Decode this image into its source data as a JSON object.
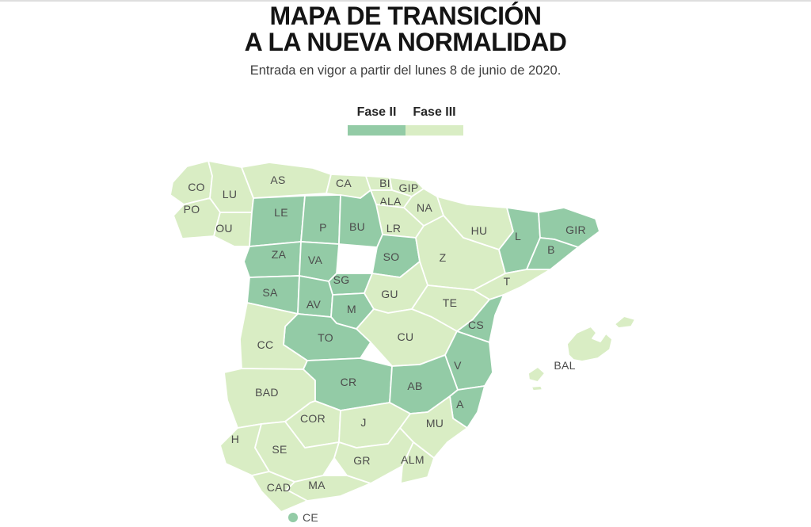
{
  "header": {
    "title_line1": "MAPA DE TRANSICIÓN",
    "title_line2": "A LA NUEVA NORMALIDAD",
    "subtitle": "Entrada en vigor a partir del lunes 8 de junio de 2020."
  },
  "legend": {
    "items": [
      {
        "label": "Fase II",
        "phase": "fase2"
      },
      {
        "label": "Fase III",
        "phase": "fase3"
      }
    ]
  },
  "colors": {
    "fase2": "#93cba6",
    "fase3": "#d9edc4",
    "border": "#ffffff",
    "label": "#4c4c4c",
    "top_rule": "#dedede"
  },
  "chart_data": {
    "type": "map",
    "title": "MAPA DE TRANSICIÓN A LA NUEVA NORMALIDAD",
    "subtitle": "Entrada en vigor a partir del lunes 8 de junio de 2020.",
    "legend": [
      "Fase II",
      "Fase III"
    ],
    "fase2_provinces": [
      "LE",
      "P",
      "BU",
      "SO",
      "ZA",
      "VA",
      "SG",
      "SA",
      "AV",
      "M",
      "TO",
      "CR",
      "AB",
      "CS",
      "V",
      "A",
      "L",
      "GIR",
      "B",
      "CE"
    ],
    "fase3_provinces": [
      "CO",
      "LU",
      "PO",
      "OU",
      "AS",
      "CA",
      "BI",
      "GIP",
      "ALA",
      "NA",
      "LR",
      "HU",
      "Z",
      "T",
      "TE",
      "GU",
      "CU",
      "CC",
      "BAD",
      "COR",
      "J",
      "H",
      "SE",
      "GR",
      "ALM",
      "MA",
      "CAD",
      "MU",
      "BAL"
    ]
  },
  "map": {
    "provinces": [
      {
        "code": "CO",
        "phase": "fase3",
        "label": [
          248,
          236
        ],
        "polys": [
          "215,246 218,230 236,210 263,203 268,222 265,250 232,258"
        ]
      },
      {
        "code": "LU",
        "phase": "fase3",
        "label": [
          290,
          245
        ],
        "polys": [
          "263,203 305,211 320,250 318,268 278,268 265,250 268,222"
        ]
      },
      {
        "code": "PO",
        "phase": "fase3",
        "label": [
          242,
          264
        ],
        "polys": [
          "232,258 265,250 278,268 270,298 230,301 219,272"
        ]
      },
      {
        "code": "OU",
        "phase": "fase3",
        "label": [
          283,
          288
        ],
        "polys": [
          "278,268 318,268 315,311 296,311 270,298"
        ]
      },
      {
        "code": "AS",
        "phase": "fase3",
        "label": [
          351,
          227
        ],
        "polys": [
          "305,211 340,205 395,212 418,220 412,244 320,250"
        ]
      },
      {
        "code": "CA",
        "phase": "fase3",
        "label": [
          434,
          231
        ],
        "polys": [
          "418,220 462,222 468,240 455,250 412,244"
        ]
      },
      {
        "code": "BI",
        "phase": "fase3",
        "label": [
          486,
          231
        ],
        "polys": [
          "462,222 492,224 495,240 468,240"
        ]
      },
      {
        "code": "GIP",
        "phase": "fase3",
        "label": [
          516,
          237
        ],
        "polys": [
          "492,224 525,228 535,238 520,248 495,240"
        ]
      },
      {
        "code": "ALA",
        "phase": "fase3",
        "label": [
          493,
          254
        ],
        "polys": [
          "468,240 495,240 520,248 510,262 475,258"
        ]
      },
      {
        "code": "NA",
        "phase": "fase3",
        "label": [
          536,
          262
        ],
        "polys": [
          "520,248 535,238 552,248 560,272 535,285 510,262"
        ]
      },
      {
        "code": "LR",
        "phase": "fase3",
        "label": [
          497,
          288
        ],
        "polys": [
          "475,258 510,262 535,285 525,300 483,296"
        ]
      },
      {
        "code": "LE",
        "phase": "fase2",
        "label": [
          355,
          268
        ],
        "polys": [
          "320,250 385,247 380,305 315,311 318,268"
        ]
      },
      {
        "code": "P",
        "phase": "fase2",
        "label": [
          408,
          287
        ],
        "polys": [
          "385,247 430,246 428,308 380,305"
        ]
      },
      {
        "code": "BU",
        "phase": "fase2",
        "label": [
          451,
          286
        ],
        "polys": [
          "430,246 455,250 468,240 475,258 483,296 476,312 428,308"
        ]
      },
      {
        "code": "SO",
        "phase": "fase2",
        "label": [
          494,
          324
        ],
        "polys": [
          "483,296 525,300 530,330 505,350 470,345 476,312"
        ]
      },
      {
        "code": "HU",
        "phase": "fase3",
        "label": [
          605,
          291
        ],
        "polys": [
          "552,248 590,258 640,262 648,292 630,315 585,300 560,272"
        ]
      },
      {
        "code": "Z",
        "phase": "fase3",
        "label": [
          559,
          325
        ],
        "polys": [
          "525,300 535,285 560,272 585,300 630,315 638,345 598,366 540,360 530,330"
        ]
      },
      {
        "code": "L",
        "phase": "fase2",
        "label": [
          654,
          298
        ],
        "polys": [
          "640,262 680,268 682,300 665,340 638,345 630,315 648,292"
        ]
      },
      {
        "code": "GIR",
        "phase": "fase2",
        "label": [
          727,
          290
        ],
        "polys": [
          "680,268 712,262 752,276 757,292 730,312 700,302 682,300"
        ]
      },
      {
        "code": "B",
        "phase": "fase2",
        "label": [
          696,
          315
        ],
        "polys": [
          "682,300 700,302 730,312 695,340 665,340"
        ]
      },
      {
        "code": "T",
        "phase": "fase3",
        "label": [
          640,
          355
        ],
        "polys": [
          "638,345 665,340 695,340 658,362 636,372 618,378 598,366"
        ]
      },
      {
        "code": "ZA",
        "phase": "fase2",
        "label": [
          352,
          321
        ],
        "polys": [
          "315,311 380,305 378,348 315,350 308,330"
        ]
      },
      {
        "code": "VA",
        "phase": "fase2",
        "label": [
          398,
          328
        ],
        "polys": [
          "380,305 428,308 425,345 415,355 378,348"
        ]
      },
      {
        "code": "SG",
        "phase": "fase2",
        "label": [
          431,
          353
        ],
        "polys": [
          "425,345 470,345 460,370 420,372 415,355"
        ]
      },
      {
        "code": "SA",
        "phase": "fase2",
        "label": [
          341,
          369
        ],
        "polys": [
          "315,350 378,348 376,396 312,382"
        ]
      },
      {
        "code": "AV",
        "phase": "fase2",
        "label": [
          396,
          384
        ],
        "polys": [
          "378,348 415,355 420,372 418,400 376,396"
        ]
      },
      {
        "code": "M",
        "phase": "fase2",
        "label": [
          444,
          390
        ],
        "polys": [
          "420,372 460,370 472,390 450,415 425,408 418,400"
        ]
      },
      {
        "code": "GU",
        "phase": "fase3",
        "label": [
          492,
          371
        ],
        "polys": [
          "460,370 470,345 505,350 530,330 540,360 520,390 490,395 472,390"
        ]
      },
      {
        "code": "TE",
        "phase": "fase3",
        "label": [
          568,
          382
        ],
        "polys": [
          "540,360 598,366 618,378 597,403 577,418 545,400 520,390"
        ]
      },
      {
        "code": "CS",
        "phase": "fase2",
        "label": [
          601,
          410
        ],
        "polys": [
          "597,403 618,378 636,372 625,398 618,432 577,418"
        ]
      },
      {
        "code": "CU",
        "phase": "fase3",
        "label": [
          512,
          425
        ],
        "polys": [
          "472,390 490,395 520,390 545,400 577,418 562,448 530,460 495,462 468,432 450,415"
        ]
      },
      {
        "code": "TO",
        "phase": "fase2",
        "label": [
          411,
          426
        ],
        "polys": [
          "376,396 418,400 425,408 450,415 468,432 455,452 388,455 358,435 360,412"
        ]
      },
      {
        "code": "CC",
        "phase": "fase3",
        "label": [
          335,
          435
        ],
        "polys": [
          "312,382 376,396 360,412 358,435 388,455 383,466 305,465 303,428"
        ]
      },
      {
        "code": "V",
        "phase": "fase2",
        "label": [
          578,
          461
        ],
        "polys": [
          "577,418 618,432 622,470 612,487 578,492 562,448"
        ]
      },
      {
        "code": "BAD",
        "phase": "fase3",
        "label": [
          337,
          495
        ],
        "polys": [
          "283,470 305,465 383,466 398,480 398,506 392,508 360,532 330,535 300,540 287,505"
        ]
      },
      {
        "code": "CR",
        "phase": "fase2",
        "label": [
          440,
          482
        ],
        "polys": [
          "388,455 455,452 495,462 492,508 430,518 398,506 398,480 383,466"
        ]
      },
      {
        "code": "AB",
        "phase": "fase2",
        "label": [
          524,
          487
        ],
        "polys": [
          "495,462 530,460 562,448 578,492 568,500 540,520 518,522 492,508"
        ]
      },
      {
        "code": "A",
        "phase": "fase2",
        "label": [
          581,
          510
        ],
        "polys": [
          "578,492 612,487 603,520 590,540 572,528 568,500"
        ]
      },
      {
        "code": "MU",
        "phase": "fase3",
        "label": [
          549,
          534
        ],
        "polys": [
          "518,522 540,520 568,500 572,528 590,540 565,558 548,578 522,558 505,540"
        ]
      },
      {
        "code": "COR",
        "phase": "fase3",
        "label": [
          395,
          528
        ],
        "polys": [
          "392,508 398,506 430,518 428,558 385,565 360,532"
        ]
      },
      {
        "code": "J",
        "phase": "fase3",
        "label": [
          459,
          533
        ],
        "polys": [
          "430,518 492,508 518,522 505,540 490,560 450,565 428,558"
        ]
      },
      {
        "code": "H",
        "phase": "fase3",
        "label": [
          297,
          554
        ],
        "polys": [
          "300,540 330,535 322,565 340,595 318,600 285,585 278,562"
        ]
      },
      {
        "code": "SE",
        "phase": "fase3",
        "label": [
          353,
          567
        ],
        "polys": [
          "330,535 360,532 385,565 428,558 422,578 408,600 372,608 340,595 322,565"
        ]
      },
      {
        "code": "GR",
        "phase": "fase3",
        "label": [
          457,
          581
        ],
        "polys": [
          "428,558 450,565 490,560 505,540 522,558 508,588 468,610 438,600 422,578"
        ]
      },
      {
        "code": "ALM",
        "phase": "fase3",
        "label": [
          521,
          580
        ],
        "polys": [
          "522,558 548,578 540,602 506,610 508,588"
        ]
      },
      {
        "code": "MA",
        "phase": "fase3",
        "label": [
          400,
          612
        ],
        "polys": [
          "372,608 408,600 438,600 468,610 430,626 388,632 362,618"
        ]
      },
      {
        "code": "CAD",
        "phase": "fase3",
        "label": [
          352,
          615
        ],
        "polys": [
          "318,600 340,595 372,608 362,618 388,632 355,646 330,620"
        ]
      },
      {
        "code": "BAL",
        "phase": "fase3",
        "label": [
          713,
          461
        ],
        "polys": [
          "718,448 716,434 728,420 746,412 753,420 748,427 758,431 765,421 773,428 770,441 755,452 735,456 724,454",
          "776,409 788,399 802,403 797,412 781,414",
          "667,471 679,463 688,471 679,482 668,479",
          "671,488 683,487 685,492 673,493"
        ]
      }
    ],
    "ceuta": {
      "code": "CE",
      "phase": "fase2",
      "dot": [
        370,
        653
      ],
      "dot_radius": 6,
      "label": [
        382,
        653
      ]
    }
  }
}
